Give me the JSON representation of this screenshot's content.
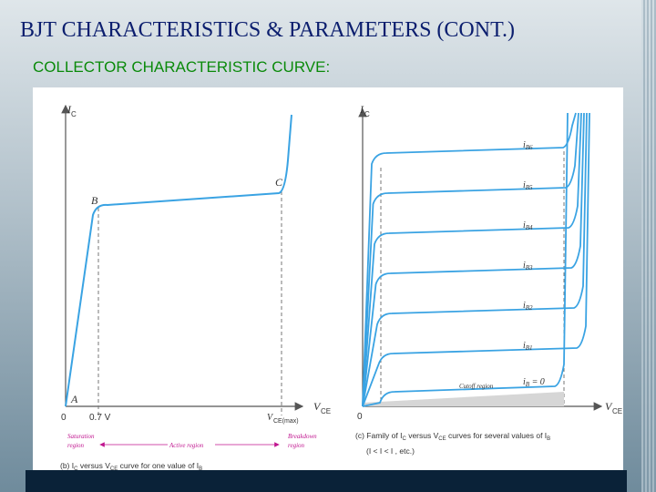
{
  "slide": {
    "title": "BJT CHARACTERISTICS & PARAMETERS (CONT.)",
    "subtitle": "COLLECTOR CHARACTERISTIC CURVE:"
  },
  "left_graph": {
    "y_axis_label": "I",
    "y_axis_sub": "C",
    "point_a": "A",
    "point_b": "B",
    "point_c": "C",
    "origin": "0",
    "vsat_label": "0.7 V",
    "vce_max_label": "V",
    "vce_max_sub": "CE(max)",
    "x_axis_label": "V",
    "x_axis_sub": "CE",
    "saturation_region": [
      "Saturation",
      "region"
    ],
    "active_region": "Active region",
    "breakdown_region": [
      "Breakdown",
      "region"
    ],
    "caption_prefix": "(b) I",
    "caption_mid": " versus V",
    "caption_end": " curve for one value of I",
    "caption_sub_c": "C",
    "caption_sub_ce": "CE",
    "caption_sub_b": "B"
  },
  "right_graph": {
    "y_axis_label": "I",
    "y_axis_sub": "C",
    "origin": "0",
    "x_axis_label": "V",
    "x_axis_sub": "CE",
    "curve_labels": [
      "i",
      "i",
      "i",
      "i",
      "i",
      "i"
    ],
    "curve_subs": [
      "B6",
      "B5",
      "B4",
      "B3",
      "B2",
      "B1"
    ],
    "ib_zero_label": "i",
    "ib_zero_sub": "B",
    "ib_zero_value": " = 0",
    "cutoff_region": "Cutoff region",
    "caption_line1_a": "(c) Family of I",
    "caption_line1_b": " versus V",
    "caption_line1_c": " curves for several values of I",
    "caption_line2": "(I   < I   < I   , etc.)",
    "caption_sub_c": "C",
    "caption_sub_ce": "CE",
    "caption_sub_b": "B"
  },
  "colors": {
    "curve": "#3aa3e3",
    "axis": "#555555",
    "title": "#0b1e6e",
    "subtitle": "#0a8a0a",
    "region_label": "#c0158f"
  }
}
